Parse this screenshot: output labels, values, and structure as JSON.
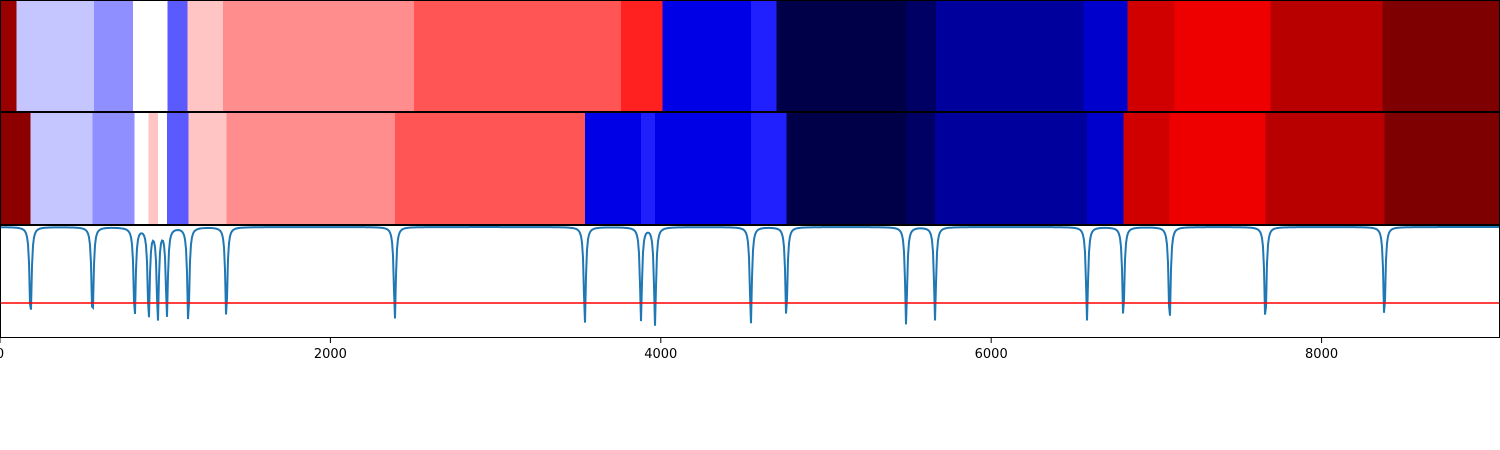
{
  "chart_data": {
    "type": "heatmap",
    "xlim": [
      0,
      9080
    ],
    "xticks": [
      {
        "value": 0,
        "label": "0"
      },
      {
        "value": 2000,
        "label": "2000"
      },
      {
        "value": 4000,
        "label": "4000"
      },
      {
        "value": 6000,
        "label": "6000"
      },
      {
        "value": 8000,
        "label": "8000"
      }
    ],
    "colormap": "seismic",
    "rows": [
      {
        "segments": [
          {
            "start": 0,
            "end": 100,
            "color": "#9b0000"
          },
          {
            "start": 100,
            "end": 570,
            "color": "#c5c5ff"
          },
          {
            "start": 570,
            "end": 805,
            "color": "#8f8fff"
          },
          {
            "start": 805,
            "end": 1015,
            "color": "#ffffff"
          },
          {
            "start": 1015,
            "end": 1135,
            "color": "#5a5aff"
          },
          {
            "start": 1135,
            "end": 1350,
            "color": "#ffc4c4"
          },
          {
            "start": 1350,
            "end": 2505,
            "color": "#ff8d8d"
          },
          {
            "start": 2505,
            "end": 3760,
            "color": "#ff5555"
          },
          {
            "start": 3760,
            "end": 4010,
            "color": "#ff2020"
          },
          {
            "start": 4010,
            "end": 4545,
            "color": "#0000e6"
          },
          {
            "start": 4545,
            "end": 4700,
            "color": "#2020ff"
          },
          {
            "start": 4700,
            "end": 5485,
            "color": "#000048"
          },
          {
            "start": 5485,
            "end": 5665,
            "color": "#000064"
          },
          {
            "start": 5665,
            "end": 6560,
            "color": "#00009c"
          },
          {
            "start": 6560,
            "end": 6825,
            "color": "#0000cc"
          },
          {
            "start": 6825,
            "end": 7110,
            "color": "#d00000"
          },
          {
            "start": 7110,
            "end": 7690,
            "color": "#ef0000"
          },
          {
            "start": 7690,
            "end": 8370,
            "color": "#b80000"
          },
          {
            "start": 8370,
            "end": 9080,
            "color": "#7f0000"
          }
        ]
      },
      {
        "segments": [
          {
            "start": 0,
            "end": 185,
            "color": "#8c0000"
          },
          {
            "start": 185,
            "end": 560,
            "color": "#c5c5ff"
          },
          {
            "start": 560,
            "end": 815,
            "color": "#8f8fff"
          },
          {
            "start": 815,
            "end": 900,
            "color": "#ffffff"
          },
          {
            "start": 900,
            "end": 955,
            "color": "#ffc4c4"
          },
          {
            "start": 955,
            "end": 1010,
            "color": "#ffffff"
          },
          {
            "start": 1010,
            "end": 1140,
            "color": "#5a5aff"
          },
          {
            "start": 1140,
            "end": 1370,
            "color": "#ffc4c4"
          },
          {
            "start": 1370,
            "end": 2390,
            "color": "#ff8d8d"
          },
          {
            "start": 2390,
            "end": 3540,
            "color": "#ff5555"
          },
          {
            "start": 3540,
            "end": 3880,
            "color": "#0000e6"
          },
          {
            "start": 3880,
            "end": 3965,
            "color": "#2020ff"
          },
          {
            "start": 3965,
            "end": 4545,
            "color": "#0000e6"
          },
          {
            "start": 4545,
            "end": 4760,
            "color": "#2020ff"
          },
          {
            "start": 4760,
            "end": 5485,
            "color": "#000048"
          },
          {
            "start": 5485,
            "end": 5660,
            "color": "#000064"
          },
          {
            "start": 5660,
            "end": 6580,
            "color": "#00009c"
          },
          {
            "start": 6580,
            "end": 6800,
            "color": "#0000cc"
          },
          {
            "start": 6800,
            "end": 7080,
            "color": "#d00000"
          },
          {
            "start": 7080,
            "end": 7660,
            "color": "#ef0000"
          },
          {
            "start": 7660,
            "end": 8380,
            "color": "#b80000"
          },
          {
            "start": 8380,
            "end": 9080,
            "color": "#7f0000"
          }
        ]
      }
    ],
    "signal": {
      "color": "#1f77b4",
      "baseline": 0,
      "ylim": [
        -1.1,
        0.1
      ],
      "dips": [
        {
          "x": 185,
          "depth": 1.0
        },
        {
          "x": 560,
          "depth": 1.0
        },
        {
          "x": 815,
          "depth": 1.0
        },
        {
          "x": 900,
          "depth": 1.0
        },
        {
          "x": 955,
          "depth": 1.0
        },
        {
          "x": 1010,
          "depth": 0.95
        },
        {
          "x": 1140,
          "depth": 1.05
        },
        {
          "x": 1370,
          "depth": 1.0
        },
        {
          "x": 2390,
          "depth": 1.0
        },
        {
          "x": 3540,
          "depth": 1.05
        },
        {
          "x": 3880,
          "depth": 1.0
        },
        {
          "x": 3965,
          "depth": 1.05
        },
        {
          "x": 4545,
          "depth": 1.05
        },
        {
          "x": 4760,
          "depth": 1.0
        },
        {
          "x": 5485,
          "depth": 1.05
        },
        {
          "x": 5660,
          "depth": 1.0
        },
        {
          "x": 6580,
          "depth": 1.0
        },
        {
          "x": 6800,
          "depth": 1.0
        },
        {
          "x": 7080,
          "depth": 1.05
        },
        {
          "x": 7660,
          "depth": 1.05
        },
        {
          "x": 8380,
          "depth": 1.0
        }
      ]
    },
    "threshold": {
      "value": 0.0,
      "color": "#ff0000"
    },
    "grid": false
  }
}
